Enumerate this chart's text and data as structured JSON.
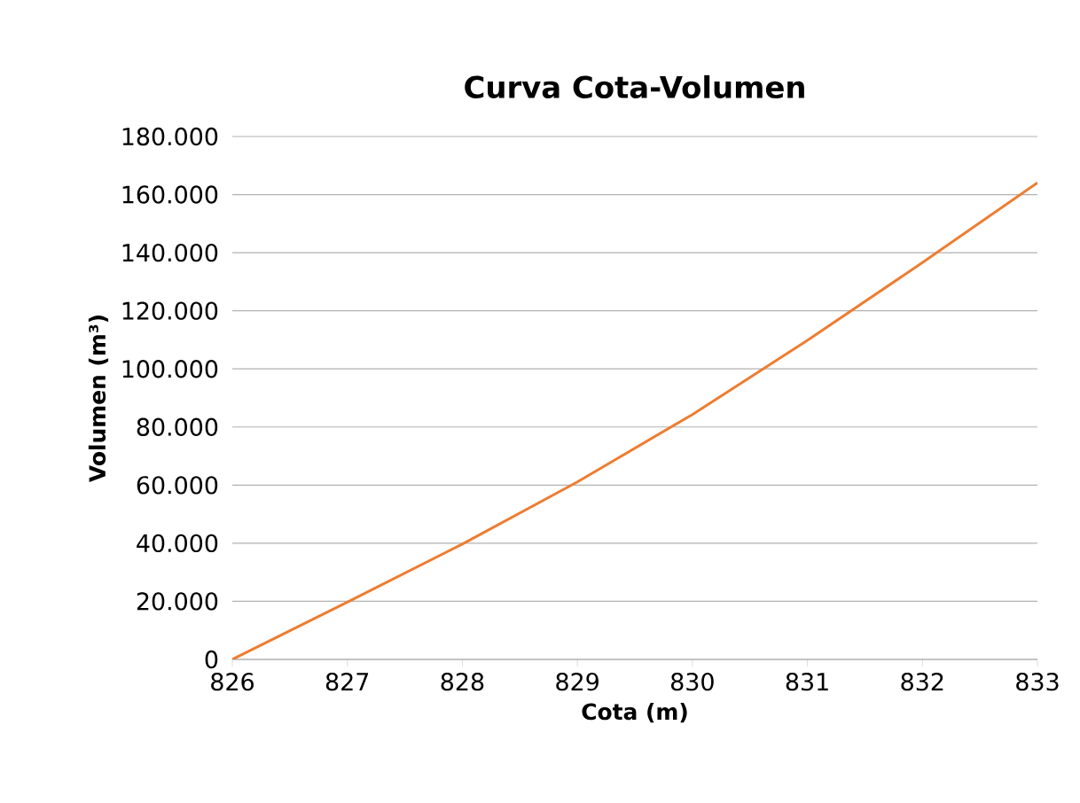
{
  "chart_data": {
    "type": "line",
    "title": "Curva Cota-Volumen",
    "xlabel": "Cota (m)",
    "ylabel": "Volumen (m³)",
    "x": [
      826,
      827,
      828,
      829,
      830,
      831,
      832,
      833
    ],
    "series": [
      {
        "color": "#ed7d31",
        "values": [
          0,
          19700,
          39700,
          61100,
          84300,
          109800,
          136600,
          164100
        ]
      }
    ],
    "xlim": [
      826,
      833
    ],
    "xticks": [
      826,
      827,
      828,
      829,
      830,
      831,
      832,
      833
    ],
    "ylim": [
      0,
      180000
    ],
    "yticks": [
      0,
      {
        "value": 20000,
        "label": "20.000"
      },
      {
        "value": 40000,
        "label": "40.000"
      },
      {
        "value": 60000,
        "label": "60.000"
      },
      {
        "value": 80000,
        "label": "80.000"
      },
      {
        "value": 100000,
        "label": "100.000"
      },
      {
        "value": 120000,
        "label": "120.000"
      },
      {
        "value": 140000,
        "label": "140.000"
      },
      {
        "value": 160000,
        "label": "160.000"
      },
      {
        "value": 180000,
        "label": "180.000"
      }
    ],
    "grid": "y",
    "marker": "none",
    "line_style": "solid"
  }
}
